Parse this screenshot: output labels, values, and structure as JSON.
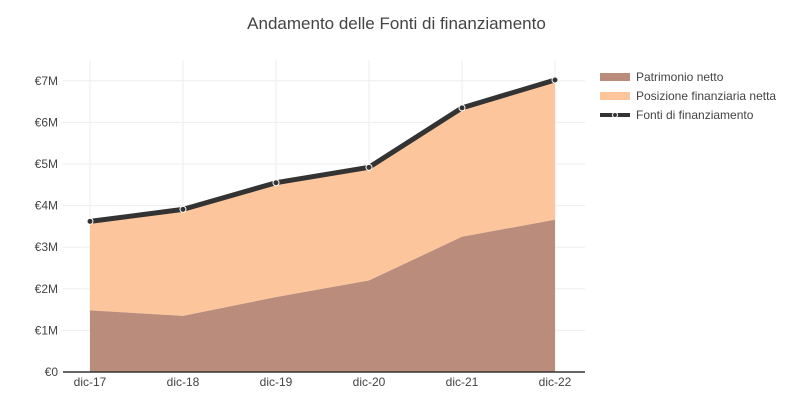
{
  "chart_data": {
    "type": "area",
    "title": "Andamento delle Fonti di finanziamento",
    "xlabel": "",
    "ylabel": "",
    "categories": [
      "dic-17",
      "dic-18",
      "dic-19",
      "dic-20",
      "dic-21",
      "dic-22"
    ],
    "ylim": [
      0,
      7500000
    ],
    "yticks": [
      0,
      1000000,
      2000000,
      3000000,
      4000000,
      5000000,
      6000000,
      7000000
    ],
    "ytick_labels": [
      "€0",
      "€1M",
      "€2M",
      "€3M",
      "€4M",
      "€5M",
      "€6M",
      "€7M"
    ],
    "grid": true,
    "legend_position": "top-right",
    "series": [
      {
        "name": "Patrimonio netto",
        "kind": "area",
        "color": "#b98c7c",
        "values": [
          1480000,
          1350000,
          1800000,
          2200000,
          3250000,
          3660000
        ]
      },
      {
        "name": "Posizione finanziaria netta",
        "kind": "area-stacked",
        "color": "#fdc59b",
        "values": [
          2140000,
          2560000,
          2750000,
          2720000,
          3100000,
          3360000
        ]
      },
      {
        "name": "Fonti di finanziamento",
        "kind": "line",
        "color": "#333333",
        "values": [
          3620000,
          3910000,
          4550000,
          4920000,
          6350000,
          7020000
        ]
      }
    ]
  }
}
